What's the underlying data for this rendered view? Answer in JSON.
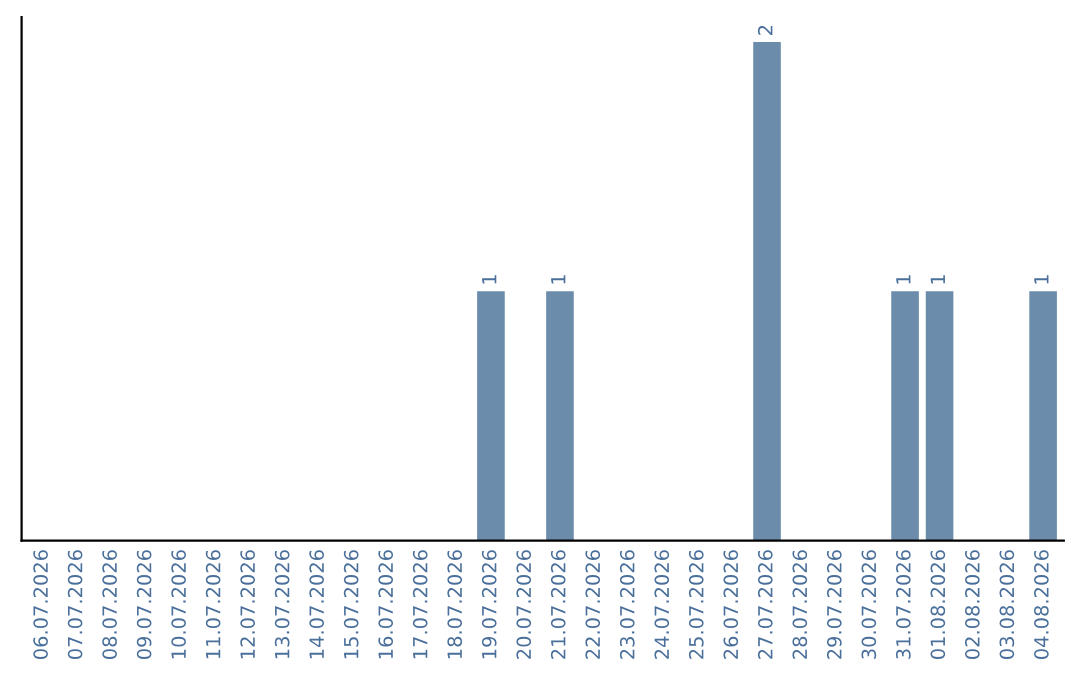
{
  "chart_data": {
    "type": "bar",
    "categories": [
      "06.07.2026",
      "07.07.2026",
      "08.07.2026",
      "09.07.2026",
      "10.07.2026",
      "11.07.2026",
      "12.07.2026",
      "13.07.2026",
      "14.07.2026",
      "15.07.2026",
      "16.07.2026",
      "17.07.2026",
      "18.07.2026",
      "19.07.2026",
      "20.07.2026",
      "21.07.2026",
      "22.07.2026",
      "23.07.2026",
      "24.07.2026",
      "25.07.2026",
      "26.07.2026",
      "27.07.2026",
      "28.07.2026",
      "29.07.2026",
      "30.07.2026",
      "31.07.2026",
      "01.08.2026",
      "02.08.2026",
      "03.08.2026",
      "04.08.2026"
    ],
    "values": [
      null,
      null,
      null,
      null,
      null,
      null,
      null,
      null,
      null,
      null,
      null,
      null,
      null,
      1,
      null,
      1,
      null,
      null,
      null,
      null,
      null,
      2,
      null,
      null,
      null,
      1,
      1,
      null,
      null,
      1
    ],
    "value_labels": [
      null,
      null,
      null,
      null,
      null,
      null,
      null,
      null,
      null,
      null,
      null,
      null,
      null,
      "1",
      null,
      "1",
      null,
      null,
      null,
      null,
      null,
      "2",
      null,
      null,
      null,
      "1",
      "1",
      null,
      null,
      "1"
    ],
    "color": "#6b8cab",
    "tick_labels": "x",
    "grid": false,
    "legend": false
  }
}
